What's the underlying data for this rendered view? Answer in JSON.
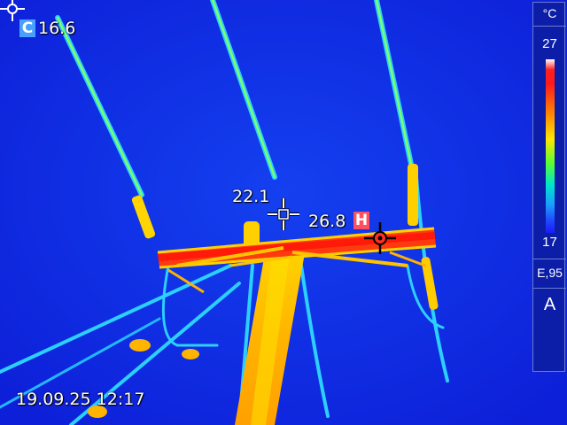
{
  "cold_spot": {
    "badge": "C",
    "value": "16.6"
  },
  "center_spot": {
    "value": "22.1"
  },
  "hot_spot": {
    "badge": "H",
    "value": "26.8"
  },
  "timestamp": "19.09.25 12:17",
  "scale_panel": {
    "unit": "°C",
    "max": "27",
    "min": "17",
    "emissivity": "E,95",
    "mode": "A"
  },
  "colors": {
    "background": "#0f24e6",
    "hot": "#ff2a14",
    "warm": "#ffd000",
    "mid": "#3cff8a",
    "cool": "#19c8ff"
  },
  "icons": [
    "spot-crosshair-icon",
    "center-crosshair-icon",
    "hot-crosshair-icon"
  ]
}
